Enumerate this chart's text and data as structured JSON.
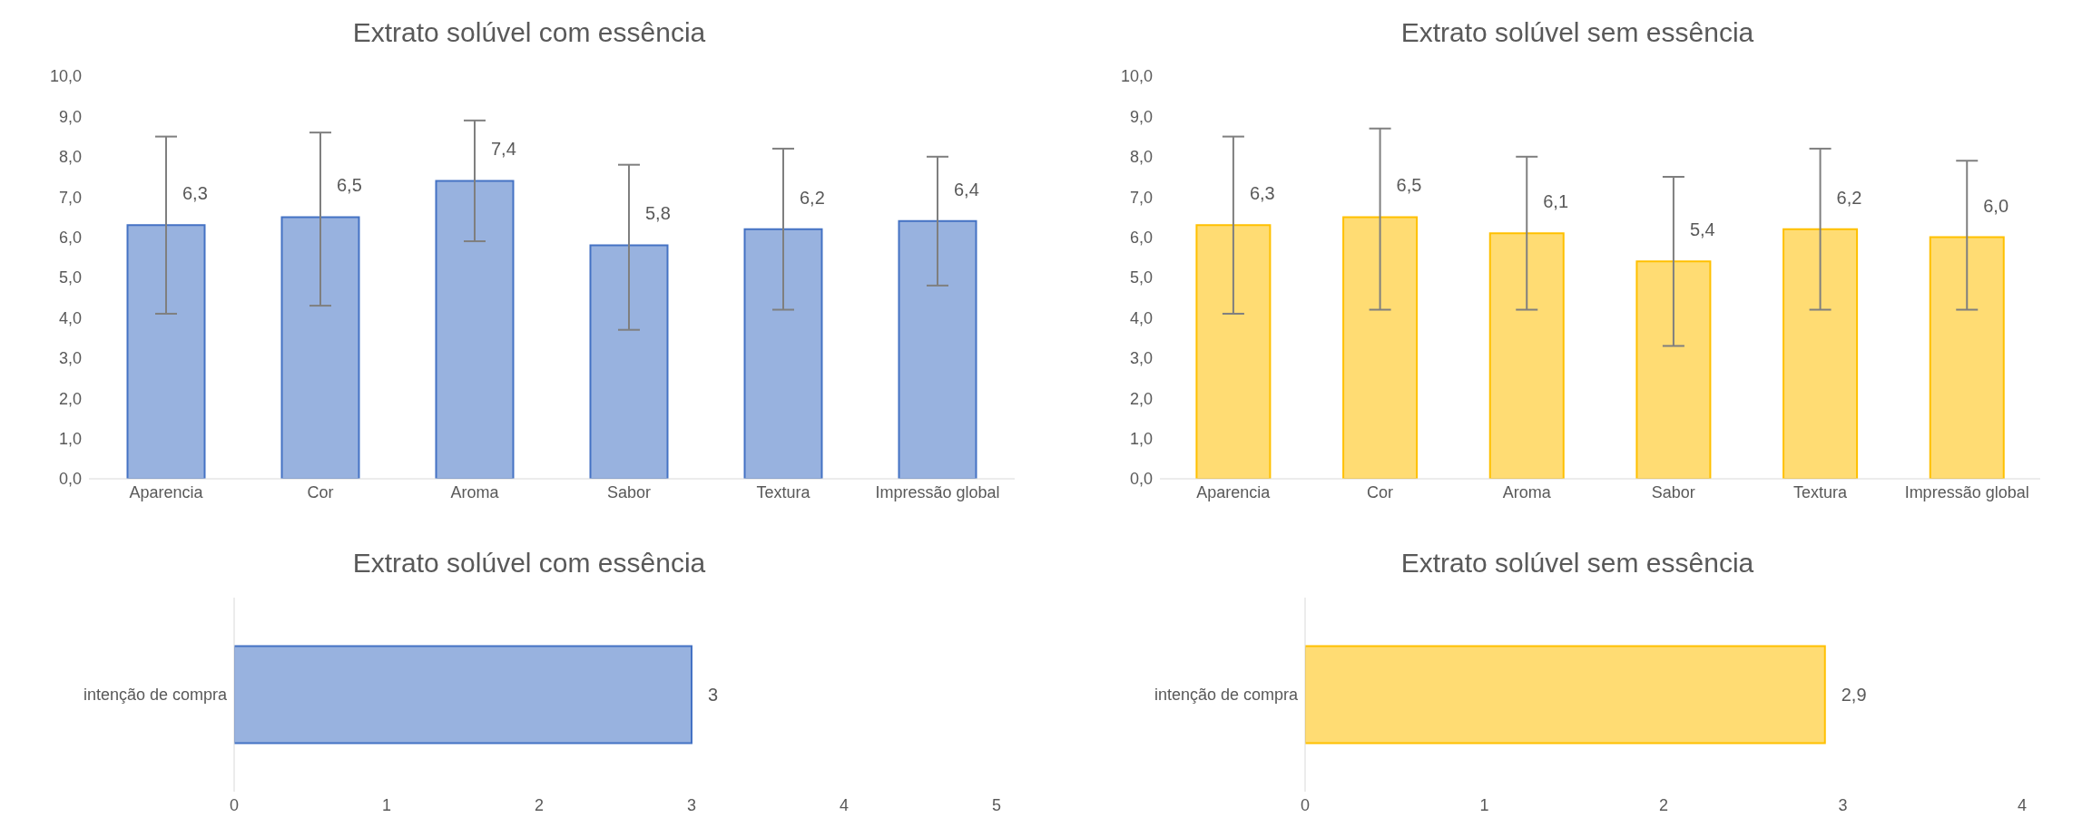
{
  "chart_data": [
    {
      "type": "bar",
      "title": "Extrato solúvel com essência",
      "categories": [
        "Aparencia",
        "Cor",
        "Aroma",
        "Sabor",
        "Textura",
        "Impressão global"
      ],
      "series": [
        {
          "color": "#4472c4",
          "values": [
            6.3,
            6.5,
            7.4,
            5.8,
            6.2,
            6.4
          ],
          "value_labels": [
            "6,3",
            "6,5",
            "7,4",
            "5,8",
            "6,2",
            "6,4"
          ],
          "errors": [
            [
              4.1,
              8.5
            ],
            [
              4.3,
              8.6
            ],
            [
              5.9,
              8.9
            ],
            [
              3.7,
              7.8
            ],
            [
              4.2,
              8.2
            ],
            [
              4.8,
              8.0
            ]
          ]
        }
      ],
      "ylim": [
        0,
        10
      ],
      "yticks": [
        {
          "value": 0,
          "label": "0,0"
        },
        {
          "value": 1,
          "label": "1,0"
        },
        {
          "value": 2,
          "label": "2,0"
        },
        {
          "value": 3,
          "label": "3,0"
        },
        {
          "value": 4,
          "label": "4,0"
        },
        {
          "value": 5,
          "label": "5,0"
        },
        {
          "value": 6,
          "label": "6,0"
        },
        {
          "value": 7,
          "label": "7,0"
        },
        {
          "value": 8,
          "label": "8,0"
        },
        {
          "value": 9,
          "label": "9,0"
        },
        {
          "value": 10,
          "label": "10,0"
        }
      ]
    },
    {
      "type": "bar",
      "title": "Extrato solúvel sem essência",
      "categories": [
        "Aparencia",
        "Cor",
        "Aroma",
        "Sabor",
        "Textura",
        "Impressão global"
      ],
      "series": [
        {
          "color": "#ffc000",
          "values": [
            6.3,
            6.5,
            6.1,
            5.4,
            6.2,
            6.0
          ],
          "value_labels": [
            "6,3",
            "6,5",
            "6,1",
            "5,4",
            "6,2",
            "6,0"
          ],
          "errors": [
            [
              4.1,
              8.5
            ],
            [
              4.2,
              8.7
            ],
            [
              4.2,
              8.0
            ],
            [
              3.3,
              7.5
            ],
            [
              4.2,
              8.2
            ],
            [
              4.2,
              7.9
            ]
          ]
        }
      ],
      "ylim": [
        0,
        10
      ],
      "yticks": [
        {
          "value": 0,
          "label": "0,0"
        },
        {
          "value": 1,
          "label": "1,0"
        },
        {
          "value": 2,
          "label": "2,0"
        },
        {
          "value": 3,
          "label": "3,0"
        },
        {
          "value": 4,
          "label": "4,0"
        },
        {
          "value": 5,
          "label": "5,0"
        },
        {
          "value": 6,
          "label": "6,0"
        },
        {
          "value": 7,
          "label": "7,0"
        },
        {
          "value": 8,
          "label": "8,0"
        },
        {
          "value": 9,
          "label": "9,0"
        },
        {
          "value": 10,
          "label": "10,0"
        }
      ]
    },
    {
      "type": "bar",
      "orientation": "horizontal",
      "title": "Extrato solúvel com essência",
      "categories": [
        "intenção de compra"
      ],
      "series": [
        {
          "color": "#4472c4",
          "values": [
            3
          ],
          "value_labels": [
            "3"
          ]
        }
      ],
      "xlim": [
        0,
        5
      ],
      "xticks": [
        0,
        1,
        2,
        3,
        4,
        5
      ]
    },
    {
      "type": "bar",
      "orientation": "horizontal",
      "title": "Extrato solúvel sem essência",
      "categories": [
        "intenção de compra"
      ],
      "series": [
        {
          "color": "#ffc000",
          "values": [
            2.9
          ],
          "value_labels": [
            "2,9"
          ]
        }
      ],
      "xlim": [
        0,
        4
      ],
      "xticks": [
        0,
        1,
        2,
        3,
        4
      ]
    }
  ]
}
